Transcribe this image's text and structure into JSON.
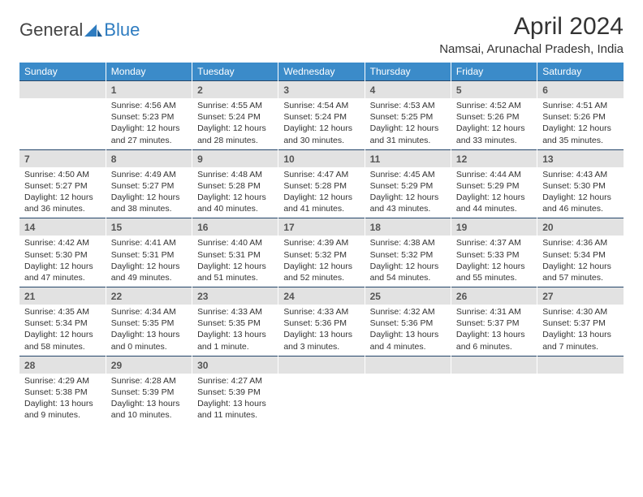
{
  "logo": {
    "part1": "General",
    "part2": "Blue"
  },
  "title": {
    "month": "April 2024",
    "location": "Namsai, Arunachal Pradesh, India"
  },
  "colors": {
    "header_bg": "#3b8bc9",
    "header_text": "#ffffff",
    "daynum_bg": "#e2e2e2",
    "daynum_border_top": "#24466a",
    "text": "#333333",
    "logo_gray": "#444444",
    "logo_blue": "#2e7cc0"
  },
  "layout": {
    "columns": 7,
    "rows": 5,
    "leading_blanks": 1,
    "trailing_blanks": 4
  },
  "days_of_week": [
    "Sunday",
    "Monday",
    "Tuesday",
    "Wednesday",
    "Thursday",
    "Friday",
    "Saturday"
  ],
  "days": [
    {
      "n": 1,
      "sunrise": "4:56 AM",
      "sunset": "5:23 PM",
      "daylight": "12 hours and 27 minutes."
    },
    {
      "n": 2,
      "sunrise": "4:55 AM",
      "sunset": "5:24 PM",
      "daylight": "12 hours and 28 minutes."
    },
    {
      "n": 3,
      "sunrise": "4:54 AM",
      "sunset": "5:24 PM",
      "daylight": "12 hours and 30 minutes."
    },
    {
      "n": 4,
      "sunrise": "4:53 AM",
      "sunset": "5:25 PM",
      "daylight": "12 hours and 31 minutes."
    },
    {
      "n": 5,
      "sunrise": "4:52 AM",
      "sunset": "5:26 PM",
      "daylight": "12 hours and 33 minutes."
    },
    {
      "n": 6,
      "sunrise": "4:51 AM",
      "sunset": "5:26 PM",
      "daylight": "12 hours and 35 minutes."
    },
    {
      "n": 7,
      "sunrise": "4:50 AM",
      "sunset": "5:27 PM",
      "daylight": "12 hours and 36 minutes."
    },
    {
      "n": 8,
      "sunrise": "4:49 AM",
      "sunset": "5:27 PM",
      "daylight": "12 hours and 38 minutes."
    },
    {
      "n": 9,
      "sunrise": "4:48 AM",
      "sunset": "5:28 PM",
      "daylight": "12 hours and 40 minutes."
    },
    {
      "n": 10,
      "sunrise": "4:47 AM",
      "sunset": "5:28 PM",
      "daylight": "12 hours and 41 minutes."
    },
    {
      "n": 11,
      "sunrise": "4:45 AM",
      "sunset": "5:29 PM",
      "daylight": "12 hours and 43 minutes."
    },
    {
      "n": 12,
      "sunrise": "4:44 AM",
      "sunset": "5:29 PM",
      "daylight": "12 hours and 44 minutes."
    },
    {
      "n": 13,
      "sunrise": "4:43 AM",
      "sunset": "5:30 PM",
      "daylight": "12 hours and 46 minutes."
    },
    {
      "n": 14,
      "sunrise": "4:42 AM",
      "sunset": "5:30 PM",
      "daylight": "12 hours and 47 minutes."
    },
    {
      "n": 15,
      "sunrise": "4:41 AM",
      "sunset": "5:31 PM",
      "daylight": "12 hours and 49 minutes."
    },
    {
      "n": 16,
      "sunrise": "4:40 AM",
      "sunset": "5:31 PM",
      "daylight": "12 hours and 51 minutes."
    },
    {
      "n": 17,
      "sunrise": "4:39 AM",
      "sunset": "5:32 PM",
      "daylight": "12 hours and 52 minutes."
    },
    {
      "n": 18,
      "sunrise": "4:38 AM",
      "sunset": "5:32 PM",
      "daylight": "12 hours and 54 minutes."
    },
    {
      "n": 19,
      "sunrise": "4:37 AM",
      "sunset": "5:33 PM",
      "daylight": "12 hours and 55 minutes."
    },
    {
      "n": 20,
      "sunrise": "4:36 AM",
      "sunset": "5:34 PM",
      "daylight": "12 hours and 57 minutes."
    },
    {
      "n": 21,
      "sunrise": "4:35 AM",
      "sunset": "5:34 PM",
      "daylight": "12 hours and 58 minutes."
    },
    {
      "n": 22,
      "sunrise": "4:34 AM",
      "sunset": "5:35 PM",
      "daylight": "13 hours and 0 minutes."
    },
    {
      "n": 23,
      "sunrise": "4:33 AM",
      "sunset": "5:35 PM",
      "daylight": "13 hours and 1 minute."
    },
    {
      "n": 24,
      "sunrise": "4:33 AM",
      "sunset": "5:36 PM",
      "daylight": "13 hours and 3 minutes."
    },
    {
      "n": 25,
      "sunrise": "4:32 AM",
      "sunset": "5:36 PM",
      "daylight": "13 hours and 4 minutes."
    },
    {
      "n": 26,
      "sunrise": "4:31 AM",
      "sunset": "5:37 PM",
      "daylight": "13 hours and 6 minutes."
    },
    {
      "n": 27,
      "sunrise": "4:30 AM",
      "sunset": "5:37 PM",
      "daylight": "13 hours and 7 minutes."
    },
    {
      "n": 28,
      "sunrise": "4:29 AM",
      "sunset": "5:38 PM",
      "daylight": "13 hours and 9 minutes."
    },
    {
      "n": 29,
      "sunrise": "4:28 AM",
      "sunset": "5:39 PM",
      "daylight": "13 hours and 10 minutes."
    },
    {
      "n": 30,
      "sunrise": "4:27 AM",
      "sunset": "5:39 PM",
      "daylight": "13 hours and 11 minutes."
    }
  ],
  "labels": {
    "sunrise": "Sunrise: ",
    "sunset": "Sunset: ",
    "daylight": "Daylight: "
  }
}
